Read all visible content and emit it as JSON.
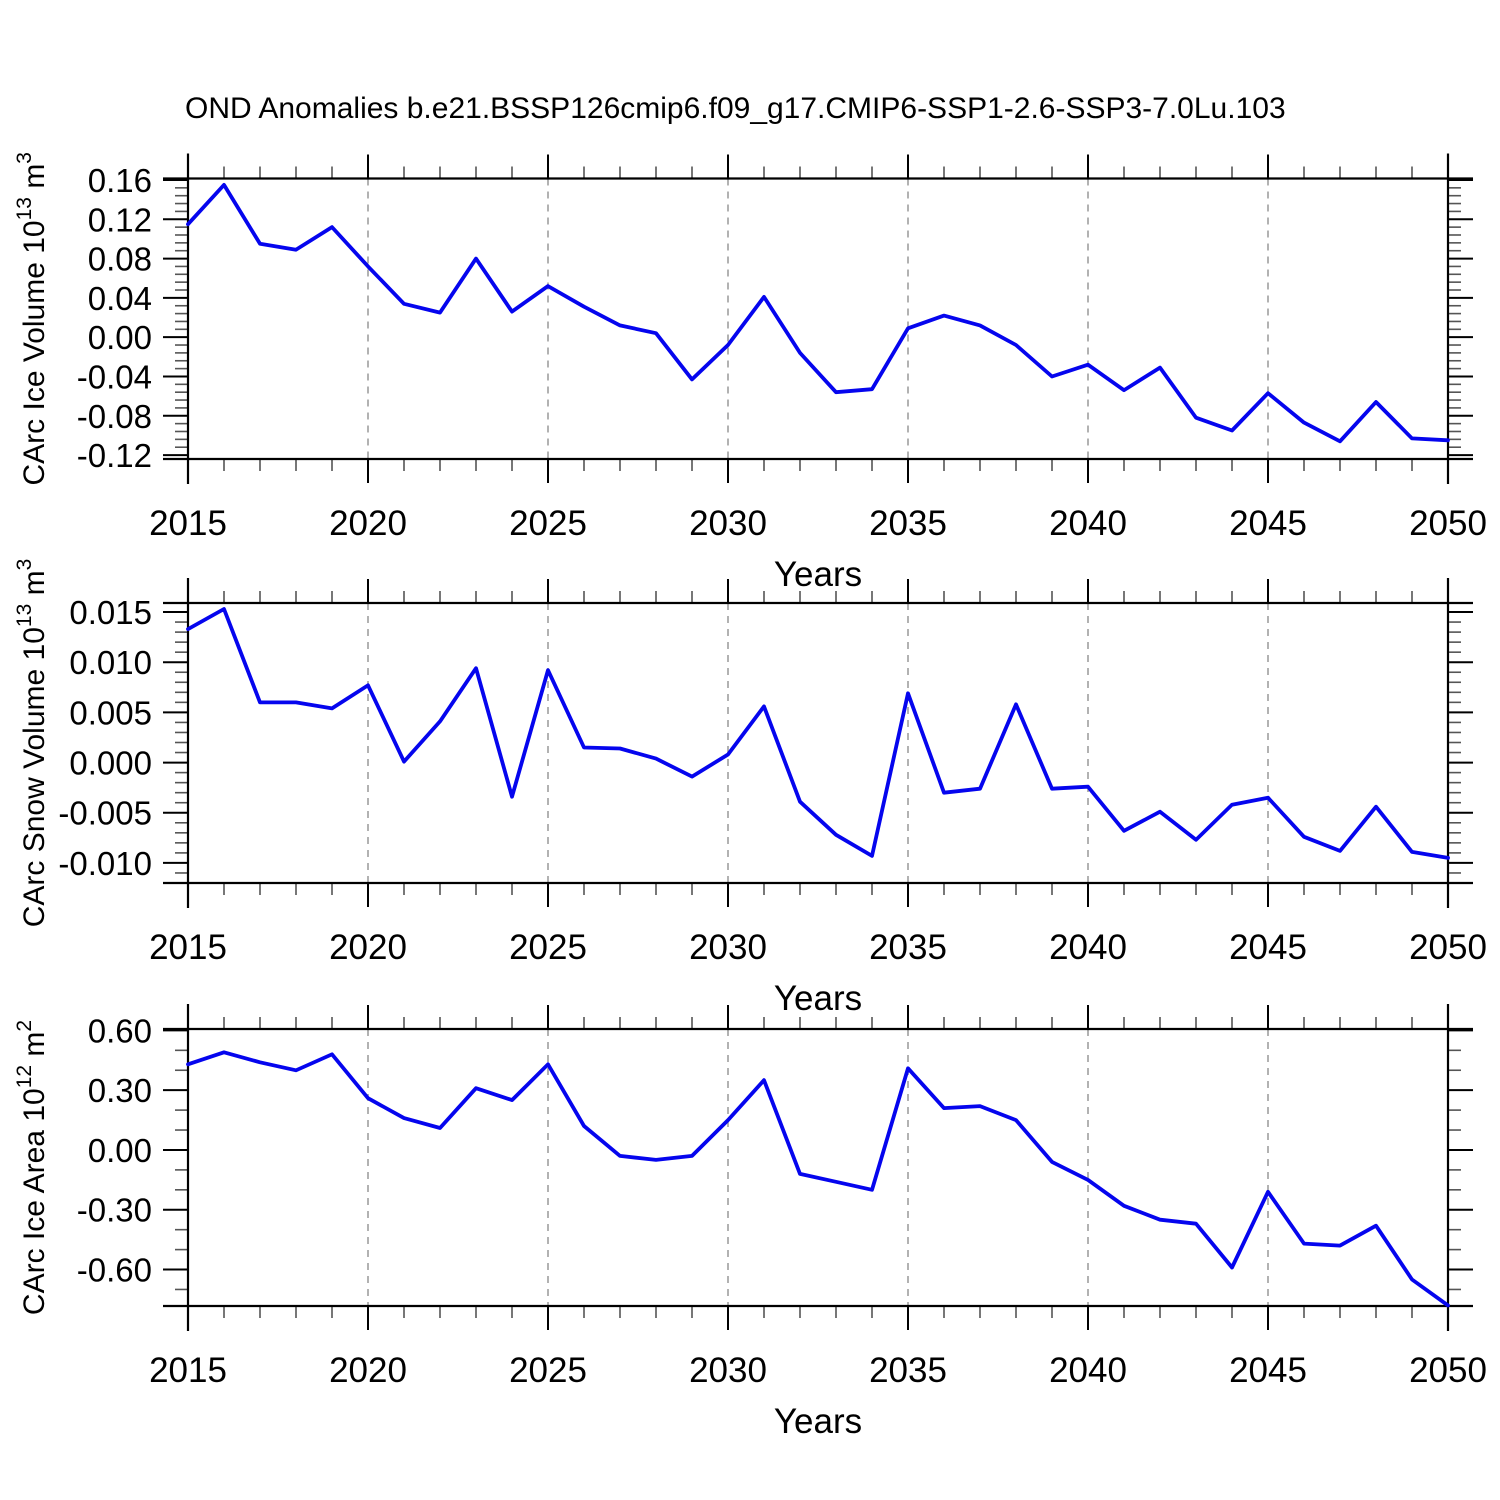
{
  "title": "OND Anomalies b.e21.BSSP126cmip6.f09_g17.CMIP6-SSP1-2.6-SSP3-7.0Lu.103",
  "colors": {
    "line": "#0505EE",
    "frame": "#000000",
    "grid": "#999999",
    "minor_tick": "#555555",
    "text": "#000000",
    "background": "#ffffff"
  },
  "chart_data": [
    {
      "type": "line",
      "name": "ice-volume",
      "ylabel": "CArc Ice Volume 10^13 m^3",
      "ylabel_parts": [
        {
          "text": "CArc Ice Volume 10",
          "sup": false
        },
        {
          "text": "13",
          "sup": true
        },
        {
          "text": " m",
          "sup": false
        },
        {
          "text": "3",
          "sup": true
        }
      ],
      "xlabel": "Years",
      "x": [
        2015,
        2016,
        2017,
        2018,
        2019,
        2020,
        2021,
        2022,
        2023,
        2024,
        2025,
        2026,
        2027,
        2028,
        2029,
        2030,
        2031,
        2032,
        2033,
        2034,
        2035,
        2036,
        2037,
        2038,
        2039,
        2040,
        2041,
        2042,
        2043,
        2044,
        2045,
        2046,
        2047,
        2048,
        2049,
        2050
      ],
      "values": [
        0.115,
        0.155,
        0.095,
        0.089,
        0.112,
        0.072,
        0.034,
        0.025,
        0.08,
        0.026,
        0.052,
        0.031,
        0.012,
        0.004,
        -0.043,
        -0.008,
        0.041,
        -0.016,
        -0.056,
        -0.053,
        0.009,
        0.022,
        0.012,
        -0.008,
        -0.04,
        -0.028,
        -0.054,
        -0.031,
        -0.082,
        -0.095,
        -0.057,
        -0.087,
        -0.106,
        -0.066,
        -0.103,
        -0.105
      ],
      "ylim": [
        -0.124,
        0.1615
      ],
      "yticks": [
        0.16,
        0.12,
        0.08,
        0.04,
        0.0,
        -0.04,
        -0.08,
        -0.12
      ],
      "ytick_labels": [
        "0.16",
        "0.12",
        "0.08",
        "0.04",
        "0.00",
        "-0.04",
        "-0.08",
        "-0.12"
      ],
      "ymajor_step": 0.04,
      "yminor_step": 0.008,
      "xlim": [
        2015,
        2050
      ],
      "xticks": [
        2015,
        2020,
        2025,
        2030,
        2035,
        2040,
        2045,
        2050
      ],
      "xtick_labels": [
        "2015",
        "2020",
        "2025",
        "2030",
        "2035",
        "2040",
        "2045",
        "2050"
      ],
      "xminor_step": 1,
      "grid_years": [
        2020,
        2025,
        2030,
        2035,
        2040,
        2045
      ],
      "grid": "vertical-dashed",
      "legend": "none"
    },
    {
      "type": "line",
      "name": "snow-volume",
      "ylabel": "CArc Snow Volume 10^13 m^3",
      "ylabel_parts": [
        {
          "text": "CArc Snow Volume 10",
          "sup": false
        },
        {
          "text": "13",
          "sup": true
        },
        {
          "text": " m",
          "sup": false
        },
        {
          "text": "3",
          "sup": true
        }
      ],
      "xlabel": "Years",
      "x": [
        2015,
        2016,
        2017,
        2018,
        2019,
        2020,
        2021,
        2022,
        2023,
        2024,
        2025,
        2026,
        2027,
        2028,
        2029,
        2030,
        2031,
        2032,
        2033,
        2034,
        2035,
        2036,
        2037,
        2038,
        2039,
        2040,
        2041,
        2042,
        2043,
        2044,
        2045,
        2046,
        2047,
        2048,
        2049,
        2050
      ],
      "values": [
        0.0133,
        0.0153,
        0.006,
        0.006,
        0.0054,
        0.0077,
        0.0001,
        0.0041,
        0.0094,
        -0.0034,
        0.0092,
        0.0015,
        0.0014,
        0.0004,
        -0.0014,
        0.0008,
        0.0056,
        -0.0039,
        -0.0072,
        -0.0093,
        0.0069,
        -0.003,
        -0.0026,
        0.0058,
        -0.0026,
        -0.0024,
        -0.0068,
        -0.0049,
        -0.0077,
        -0.0042,
        -0.0035,
        -0.0074,
        -0.0088,
        -0.0044,
        -0.0089,
        -0.0095
      ],
      "ylim": [
        -0.012,
        0.0159
      ],
      "yticks": [
        0.015,
        0.01,
        0.005,
        0.0,
        -0.005,
        -0.01
      ],
      "ytick_labels": [
        "0.015",
        "0.010",
        "0.005",
        "0.000",
        "-0.005",
        "-0.010"
      ],
      "ymajor_step": 0.005,
      "yminor_step": 0.001,
      "xlim": [
        2015,
        2050
      ],
      "xticks": [
        2015,
        2020,
        2025,
        2030,
        2035,
        2040,
        2045,
        2050
      ],
      "xtick_labels": [
        "2015",
        "2020",
        "2025",
        "2030",
        "2035",
        "2040",
        "2045",
        "2050"
      ],
      "xminor_step": 1,
      "grid_years": [
        2020,
        2025,
        2030,
        2035,
        2040,
        2045
      ],
      "grid": "vertical-dashed",
      "legend": "none"
    },
    {
      "type": "line",
      "name": "ice-area",
      "ylabel": "CArc Ice Area 10^12 m^2",
      "ylabel_parts": [
        {
          "text": "CArc Ice Area 10",
          "sup": false
        },
        {
          "text": "12",
          "sup": true
        },
        {
          "text": " m",
          "sup": false
        },
        {
          "text": "2",
          "sup": true
        }
      ],
      "xlabel": "Years",
      "x": [
        2015,
        2016,
        2017,
        2018,
        2019,
        2020,
        2021,
        2022,
        2023,
        2024,
        2025,
        2026,
        2027,
        2028,
        2029,
        2030,
        2031,
        2032,
        2033,
        2034,
        2035,
        2036,
        2037,
        2038,
        2039,
        2040,
        2041,
        2042,
        2043,
        2044,
        2045,
        2046,
        2047,
        2048,
        2049,
        2050
      ],
      "values": [
        0.43,
        0.49,
        0.44,
        0.4,
        0.48,
        0.26,
        0.16,
        0.11,
        0.31,
        0.25,
        0.43,
        0.12,
        -0.03,
        -0.05,
        -0.03,
        0.15,
        0.35,
        -0.12,
        -0.16,
        -0.2,
        0.41,
        0.21,
        0.22,
        0.15,
        -0.06,
        -0.15,
        -0.28,
        -0.35,
        -0.37,
        -0.59,
        -0.21,
        -0.47,
        -0.48,
        -0.38,
        -0.65,
        -0.78
      ],
      "ylim": [
        -0.783,
        0.607
      ],
      "yticks": [
        0.6,
        0.3,
        0.0,
        -0.3,
        -0.6
      ],
      "ytick_labels": [
        "0.60",
        "0.30",
        "0.00",
        "-0.30",
        "-0.60"
      ],
      "ymajor_step": 0.3,
      "yminor_step": 0.1,
      "xlim": [
        2015,
        2050
      ],
      "xticks": [
        2015,
        2020,
        2025,
        2030,
        2035,
        2040,
        2045,
        2050
      ],
      "xtick_labels": [
        "2015",
        "2020",
        "2025",
        "2030",
        "2035",
        "2040",
        "2045",
        "2050"
      ],
      "xminor_step": 1,
      "grid_years": [
        2020,
        2025,
        2030,
        2035,
        2040,
        2045
      ],
      "grid": "vertical-dashed",
      "legend": "none"
    }
  ]
}
